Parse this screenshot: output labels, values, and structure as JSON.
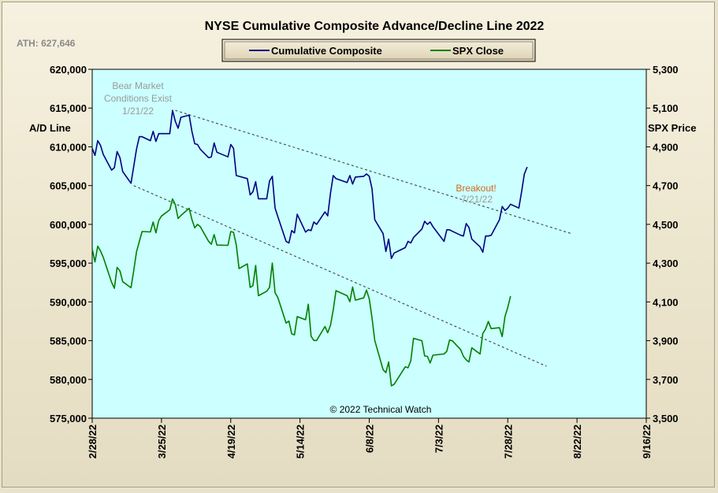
{
  "chart_data": {
    "type": "line",
    "title": "NYSE Cumulative  Composite Advance/Decline Line 2022",
    "ath_label": "ATH: 627,646",
    "ylabel_left": "A/D Line",
    "ylabel_right": "SPX Price",
    "ylim_left": [
      575000,
      620000
    ],
    "ylim_right": [
      3500,
      5300
    ],
    "yticks_left": [
      "620,000",
      "615,000",
      "610,000",
      "605,000",
      "600,000",
      "595,000",
      "590,000",
      "585,000",
      "580,000",
      "575,000"
    ],
    "yticks_right": [
      "5,300",
      "5,100",
      "4,900",
      "4,700",
      "4,500",
      "4,300",
      "4,100",
      "3,900",
      "3,700",
      "3,500"
    ],
    "xticks": [
      "2/28/22",
      "3/25/22",
      "4/19/22",
      "5/14/22",
      "6/8/22",
      "7/3/22",
      "7/28/22",
      "8/22/22",
      "9/16/22"
    ],
    "x_start": "2022-02-28",
    "x_end": "2022-09-16",
    "grid": false,
    "legend_position": "top-center",
    "background_color": "#ccffff",
    "series": [
      {
        "name": "Cumulative Composite",
        "axis": "left",
        "color": "#000080",
        "points": [
          [
            "2022-02-28",
            609800
          ],
          [
            "2022-03-01",
            608900
          ],
          [
            "2022-03-02",
            610800
          ],
          [
            "2022-03-03",
            610200
          ],
          [
            "2022-03-04",
            609000
          ],
          [
            "2022-03-07",
            607000
          ],
          [
            "2022-03-08",
            607300
          ],
          [
            "2022-03-09",
            609400
          ],
          [
            "2022-03-10",
            608600
          ],
          [
            "2022-03-11",
            606800
          ],
          [
            "2022-03-14",
            605300
          ],
          [
            "2022-03-15",
            607500
          ],
          [
            "2022-03-16",
            609700
          ],
          [
            "2022-03-17",
            611300
          ],
          [
            "2022-03-18",
            611300
          ],
          [
            "2022-03-21",
            610800
          ],
          [
            "2022-03-22",
            612000
          ],
          [
            "2022-03-23",
            610700
          ],
          [
            "2022-03-24",
            611700
          ],
          [
            "2022-03-25",
            611700
          ],
          [
            "2022-03-28",
            611700
          ],
          [
            "2022-03-29",
            614700
          ],
          [
            "2022-03-30",
            613300
          ],
          [
            "2022-03-31",
            612400
          ],
          [
            "2022-04-01",
            613800
          ],
          [
            "2022-04-04",
            614100
          ],
          [
            "2022-04-05",
            612000
          ],
          [
            "2022-04-06",
            610400
          ],
          [
            "2022-04-07",
            610300
          ],
          [
            "2022-04-08",
            609700
          ],
          [
            "2022-04-11",
            608600
          ],
          [
            "2022-04-12",
            608700
          ],
          [
            "2022-04-13",
            610500
          ],
          [
            "2022-04-14",
            609300
          ],
          [
            "2022-04-18",
            608700
          ],
          [
            "2022-04-19",
            610300
          ],
          [
            "2022-04-20",
            609800
          ],
          [
            "2022-04-21",
            606300
          ],
          [
            "2022-04-22",
            606200
          ],
          [
            "2022-04-25",
            605900
          ],
          [
            "2022-04-26",
            603800
          ],
          [
            "2022-04-27",
            604200
          ],
          [
            "2022-04-28",
            605500
          ],
          [
            "2022-04-29",
            603300
          ],
          [
            "2022-05-02",
            603300
          ],
          [
            "2022-05-03",
            605600
          ],
          [
            "2022-05-04",
            606200
          ],
          [
            "2022-05-05",
            602100
          ],
          [
            "2022-05-06",
            601000
          ],
          [
            "2022-05-09",
            597800
          ],
          [
            "2022-05-10",
            597600
          ],
          [
            "2022-05-11",
            599200
          ],
          [
            "2022-05-12",
            598900
          ],
          [
            "2022-05-13",
            601300
          ],
          [
            "2022-05-16",
            599000
          ],
          [
            "2022-05-17",
            599300
          ],
          [
            "2022-05-18",
            599200
          ],
          [
            "2022-05-19",
            600300
          ],
          [
            "2022-05-20",
            600000
          ],
          [
            "2022-05-23",
            601600
          ],
          [
            "2022-05-24",
            601100
          ],
          [
            "2022-05-25",
            604000
          ],
          [
            "2022-05-26",
            606300
          ],
          [
            "2022-05-27",
            605900
          ],
          [
            "2022-05-31",
            605400
          ],
          [
            "2022-06-01",
            606300
          ],
          [
            "2022-06-02",
            605200
          ],
          [
            "2022-06-03",
            606100
          ],
          [
            "2022-06-06",
            606200
          ],
          [
            "2022-06-07",
            606500
          ],
          [
            "2022-06-08",
            606200
          ],
          [
            "2022-06-09",
            604600
          ],
          [
            "2022-06-10",
            600600
          ],
          [
            "2022-06-13",
            598800
          ],
          [
            "2022-06-14",
            596500
          ],
          [
            "2022-06-15",
            598100
          ],
          [
            "2022-06-16",
            595600
          ],
          [
            "2022-06-17",
            596300
          ],
          [
            "2022-06-21",
            597000
          ],
          [
            "2022-06-22",
            597800
          ],
          [
            "2022-06-23",
            597600
          ],
          [
            "2022-06-24",
            598300
          ],
          [
            "2022-06-27",
            599400
          ],
          [
            "2022-06-28",
            600400
          ],
          [
            "2022-06-29",
            600000
          ],
          [
            "2022-06-30",
            600300
          ],
          [
            "2022-07-01",
            599700
          ],
          [
            "2022-07-05",
            597800
          ],
          [
            "2022-07-06",
            599300
          ],
          [
            "2022-07-07",
            599300
          ],
          [
            "2022-07-08",
            599100
          ],
          [
            "2022-07-11",
            598600
          ],
          [
            "2022-07-12",
            598500
          ],
          [
            "2022-07-13",
            600100
          ],
          [
            "2022-07-14",
            599600
          ],
          [
            "2022-07-15",
            598100
          ],
          [
            "2022-07-18",
            597100
          ],
          [
            "2022-07-19",
            596400
          ],
          [
            "2022-07-20",
            598500
          ],
          [
            "2022-07-21",
            598500
          ],
          [
            "2022-07-22",
            598600
          ],
          [
            "2022-07-25",
            600600
          ],
          [
            "2022-07-26",
            602300
          ],
          [
            "2022-07-27",
            601800
          ],
          [
            "2022-07-28",
            602100
          ],
          [
            "2022-07-29",
            602600
          ],
          [
            "2022-08-01",
            602100
          ],
          [
            "2022-08-02",
            604200
          ],
          [
            "2022-08-03",
            606500
          ],
          [
            "2022-08-04",
            607400
          ]
        ]
      },
      {
        "name": "SPX Close",
        "axis": "right",
        "color": "#008000",
        "points": [
          [
            "2022-02-28",
            4374
          ],
          [
            "2022-03-01",
            4306
          ],
          [
            "2022-03-02",
            4387
          ],
          [
            "2022-03-03",
            4363
          ],
          [
            "2022-03-04",
            4329
          ],
          [
            "2022-03-07",
            4201
          ],
          [
            "2022-03-08",
            4170
          ],
          [
            "2022-03-09",
            4278
          ],
          [
            "2022-03-10",
            4260
          ],
          [
            "2022-03-11",
            4204
          ],
          [
            "2022-03-14",
            4173
          ],
          [
            "2022-03-15",
            4262
          ],
          [
            "2022-03-16",
            4358
          ],
          [
            "2022-03-17",
            4412
          ],
          [
            "2022-03-18",
            4463
          ],
          [
            "2022-03-21",
            4461
          ],
          [
            "2022-03-22",
            4512
          ],
          [
            "2022-03-23",
            4456
          ],
          [
            "2022-03-24",
            4520
          ],
          [
            "2022-03-25",
            4543
          ],
          [
            "2022-03-28",
            4575
          ],
          [
            "2022-03-29",
            4631
          ],
          [
            "2022-03-30",
            4602
          ],
          [
            "2022-03-31",
            4530
          ],
          [
            "2022-04-01",
            4546
          ],
          [
            "2022-04-04",
            4583
          ],
          [
            "2022-04-05",
            4525
          ],
          [
            "2022-04-06",
            4482
          ],
          [
            "2022-04-07",
            4500
          ],
          [
            "2022-04-08",
            4488
          ],
          [
            "2022-04-11",
            4413
          ],
          [
            "2022-04-12",
            4397
          ],
          [
            "2022-04-13",
            4447
          ],
          [
            "2022-04-14",
            4393
          ],
          [
            "2022-04-18",
            4392
          ],
          [
            "2022-04-19",
            4463
          ],
          [
            "2022-04-20",
            4459
          ],
          [
            "2022-04-21",
            4394
          ],
          [
            "2022-04-22",
            4272
          ],
          [
            "2022-04-25",
            4296
          ],
          [
            "2022-04-26",
            4175
          ],
          [
            "2022-04-27",
            4184
          ],
          [
            "2022-04-28",
            4288
          ],
          [
            "2022-04-29",
            4132
          ],
          [
            "2022-05-02",
            4155
          ],
          [
            "2022-05-03",
            4175
          ],
          [
            "2022-05-04",
            4300
          ],
          [
            "2022-05-05",
            4147
          ],
          [
            "2022-05-06",
            4123
          ],
          [
            "2022-05-09",
            3991
          ],
          [
            "2022-05-10",
            4001
          ],
          [
            "2022-05-11",
            3935
          ],
          [
            "2022-05-12",
            3930
          ],
          [
            "2022-05-13",
            4024
          ],
          [
            "2022-05-16",
            4008
          ],
          [
            "2022-05-17",
            4088
          ],
          [
            "2022-05-18",
            3923
          ],
          [
            "2022-05-19",
            3901
          ],
          [
            "2022-05-20",
            3901
          ],
          [
            "2022-05-23",
            3973
          ],
          [
            "2022-05-24",
            3941
          ],
          [
            "2022-05-25",
            3979
          ],
          [
            "2022-05-26",
            4058
          ],
          [
            "2022-05-27",
            4158
          ],
          [
            "2022-05-31",
            4132
          ],
          [
            "2022-06-01",
            4101
          ],
          [
            "2022-06-02",
            4177
          ],
          [
            "2022-06-03",
            4109
          ],
          [
            "2022-06-06",
            4121
          ],
          [
            "2022-06-07",
            4161
          ],
          [
            "2022-06-08",
            4116
          ],
          [
            "2022-06-09",
            4018
          ],
          [
            "2022-06-10",
            3901
          ],
          [
            "2022-06-13",
            3750
          ],
          [
            "2022-06-14",
            3735
          ],
          [
            "2022-06-15",
            3790
          ],
          [
            "2022-06-16",
            3667
          ],
          [
            "2022-06-17",
            3675
          ],
          [
            "2022-06-21",
            3765
          ],
          [
            "2022-06-22",
            3760
          ],
          [
            "2022-06-23",
            3796
          ],
          [
            "2022-06-24",
            3912
          ],
          [
            "2022-06-27",
            3900
          ],
          [
            "2022-06-28",
            3821
          ],
          [
            "2022-06-29",
            3819
          ],
          [
            "2022-06-30",
            3785
          ],
          [
            "2022-07-01",
            3825
          ],
          [
            "2022-07-05",
            3831
          ],
          [
            "2022-07-06",
            3845
          ],
          [
            "2022-07-07",
            3903
          ],
          [
            "2022-07-08",
            3899
          ],
          [
            "2022-07-11",
            3854
          ],
          [
            "2022-07-12",
            3819
          ],
          [
            "2022-07-13",
            3801
          ],
          [
            "2022-07-14",
            3790
          ],
          [
            "2022-07-15",
            3863
          ],
          [
            "2022-07-18",
            3831
          ],
          [
            "2022-07-19",
            3937
          ],
          [
            "2022-07-20",
            3960
          ],
          [
            "2022-07-21",
            3999
          ],
          [
            "2022-07-22",
            3962
          ],
          [
            "2022-07-25",
            3967
          ],
          [
            "2022-07-26",
            3921
          ],
          [
            "2022-07-27",
            4024
          ],
          [
            "2022-07-28",
            4072
          ],
          [
            "2022-07-29",
            4130
          ]
        ]
      }
    ],
    "trendlines": [
      {
        "axis": "left",
        "style": "dashed",
        "from": [
          "2022-03-30",
          614700
        ],
        "to": [
          "2022-08-20",
          598800
        ]
      },
      {
        "axis": "left",
        "style": "dashed",
        "from": [
          "2022-03-15",
          605000
        ],
        "to": [
          "2022-08-11",
          581700
        ]
      }
    ],
    "annotations": [
      {
        "lines": [
          "Bear Market",
          "Conditions  Exist",
          "1/21/22"
        ],
        "color": "#9a9a9a"
      },
      {
        "lines": [
          "Breakout!"
        ],
        "color": "#d2691e"
      },
      {
        "lines": [
          "7/21/22"
        ],
        "color": "#9a9a9a"
      },
      {
        "lines": [
          "© 2022 Technical  Watch"
        ],
        "color": "#000000"
      }
    ]
  }
}
